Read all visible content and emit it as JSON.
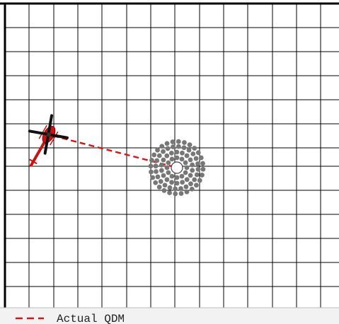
{
  "scene": {
    "grid": {
      "line_color": "#000000",
      "background": "#ffffff",
      "border_color": "#000000"
    },
    "helicopter": {
      "icon": "helicopter-icon",
      "body_color": "#cc1111",
      "rotor_color": "#111111"
    },
    "beacon": {
      "icon": "beacon-target-icon",
      "dot_color": "#777777",
      "center_fill": "#ffffff"
    },
    "qdm_line": {
      "color": "#e01010",
      "style": "dashed"
    }
  },
  "legend": {
    "items": [
      {
        "label": "Actual QDM",
        "color": "#e01010",
        "style": "dashed"
      }
    ],
    "background": "#f2f2f2"
  }
}
